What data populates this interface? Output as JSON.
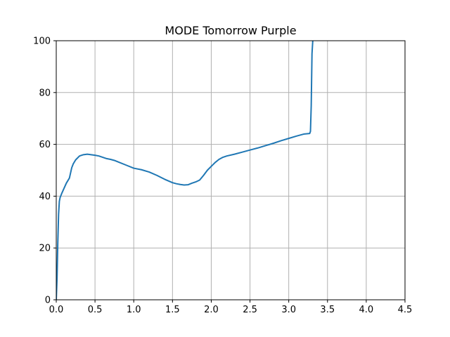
{
  "chart_data": {
    "type": "line",
    "title": "MODE Tomorrow Purple",
    "xlabel": "",
    "ylabel": "",
    "xlim": [
      0,
      4.5
    ],
    "ylim": [
      0,
      100
    ],
    "x_ticks": [
      0.0,
      0.5,
      1.0,
      1.5,
      2.0,
      2.5,
      3.0,
      3.5,
      4.0,
      4.5
    ],
    "x_tick_labels": [
      "0.0",
      "0.5",
      "1.0",
      "1.5",
      "2.0",
      "2.5",
      "3.0",
      "3.5",
      "4.0",
      "4.5"
    ],
    "y_ticks": [
      0,
      20,
      40,
      60,
      80,
      100
    ],
    "y_tick_labels": [
      "0",
      "20",
      "40",
      "60",
      "80",
      "100"
    ],
    "grid": true,
    "colors": {
      "series": "#1f77b4"
    },
    "series": [
      {
        "x": [
          0.0,
          0.01,
          0.02,
          0.03,
          0.04,
          0.05,
          0.07,
          0.1,
          0.13,
          0.17,
          0.2,
          0.22,
          0.25,
          0.3,
          0.35,
          0.4,
          0.45,
          0.5,
          0.55,
          0.6,
          0.65,
          0.7,
          0.75,
          0.8,
          0.9,
          1.0,
          1.1,
          1.2,
          1.3,
          1.4,
          1.5,
          1.55,
          1.6,
          1.65,
          1.7,
          1.75,
          1.8,
          1.85,
          1.9,
          1.95,
          2.0,
          2.05,
          2.1,
          2.15,
          2.2,
          2.3,
          2.4,
          2.5,
          2.6,
          2.7,
          2.8,
          2.9,
          3.0,
          3.1,
          3.2,
          3.27,
          3.28,
          3.29,
          3.295,
          3.3,
          3.31,
          3.315
        ],
        "y": [
          0,
          8,
          22,
          33,
          38,
          39.5,
          41,
          43,
          45,
          47,
          51,
          52.5,
          54,
          55.5,
          56,
          56.2,
          56,
          55.8,
          55.5,
          55,
          54.5,
          54.2,
          53.8,
          53.2,
          52,
          50.8,
          50.2,
          49.3,
          48,
          46.5,
          45.2,
          44.8,
          44.5,
          44.3,
          44.4,
          45,
          45.5,
          46.2,
          48,
          50,
          51.5,
          53,
          54.2,
          55,
          55.5,
          56.2,
          57,
          57.8,
          58.6,
          59.5,
          60.4,
          61.4,
          62.3,
          63.2,
          64,
          64.2,
          65,
          75,
          85,
          95,
          100,
          101
        ]
      }
    ]
  }
}
